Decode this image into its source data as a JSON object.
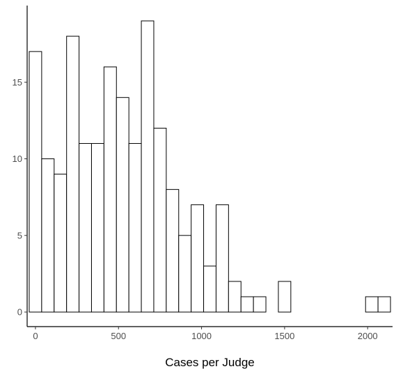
{
  "chart_data": {
    "type": "bar",
    "subtype": "histogram",
    "title": "",
    "xlabel": "Cases per Judge",
    "ylabel": "",
    "xlim": [
      -50,
      2150
    ],
    "ylim": [
      -0.95,
      20
    ],
    "bin_width": 75,
    "bins": [
      {
        "x0": -37.5,
        "x1": 37.5,
        "count": 17
      },
      {
        "x0": 37.5,
        "x1": 112.5,
        "count": 10
      },
      {
        "x0": 112.5,
        "x1": 187.5,
        "count": 9
      },
      {
        "x0": 187.5,
        "x1": 262.5,
        "count": 18
      },
      {
        "x0": 262.5,
        "x1": 337.5,
        "count": 11
      },
      {
        "x0": 337.5,
        "x1": 412.5,
        "count": 11
      },
      {
        "x0": 412.5,
        "x1": 487.5,
        "count": 16
      },
      {
        "x0": 487.5,
        "x1": 562.5,
        "count": 14
      },
      {
        "x0": 562.5,
        "x1": 637.5,
        "count": 11
      },
      {
        "x0": 637.5,
        "x1": 712.5,
        "count": 19
      },
      {
        "x0": 712.5,
        "x1": 787.5,
        "count": 12
      },
      {
        "x0": 787.5,
        "x1": 862.5,
        "count": 8
      },
      {
        "x0": 862.5,
        "x1": 937.5,
        "count": 5
      },
      {
        "x0": 937.5,
        "x1": 1012.5,
        "count": 7
      },
      {
        "x0": 1012.5,
        "x1": 1087.5,
        "count": 3
      },
      {
        "x0": 1087.5,
        "x1": 1162.5,
        "count": 7
      },
      {
        "x0": 1162.5,
        "x1": 1237.5,
        "count": 2
      },
      {
        "x0": 1237.5,
        "x1": 1312.5,
        "count": 1
      },
      {
        "x0": 1312.5,
        "x1": 1387.5,
        "count": 1
      },
      {
        "x0": 1387.5,
        "x1": 1462.5,
        "count": 0
      },
      {
        "x0": 1462.5,
        "x1": 1537.5,
        "count": 2
      },
      {
        "x0": 1537.5,
        "x1": 1612.5,
        "count": 0
      },
      {
        "x0": 1612.5,
        "x1": 1687.5,
        "count": 0
      },
      {
        "x0": 1687.5,
        "x1": 1762.5,
        "count": 0
      },
      {
        "x0": 1762.5,
        "x1": 1837.5,
        "count": 0
      },
      {
        "x0": 1837.5,
        "x1": 1912.5,
        "count": 0
      },
      {
        "x0": 1912.5,
        "x1": 1987.5,
        "count": 0
      },
      {
        "x0": 1987.5,
        "x1": 2062.5,
        "count": 1
      },
      {
        "x0": 2062.5,
        "x1": 2137.5,
        "count": 1
      }
    ],
    "x_ticks": [
      0,
      500,
      1000,
      1500,
      2000
    ],
    "x_tick_labels": [
      "0",
      "500",
      "1000",
      "1500",
      "2000"
    ],
    "y_ticks": [
      0,
      5,
      10,
      15
    ],
    "y_tick_labels": [
      "0",
      "5",
      "10",
      "15"
    ],
    "grid": false,
    "legend": "none",
    "colors": {
      "bar_fill": "#ffffff",
      "bar_outline": "#000000",
      "axis": "#000000",
      "tick_text": "#4d4d4d"
    }
  }
}
